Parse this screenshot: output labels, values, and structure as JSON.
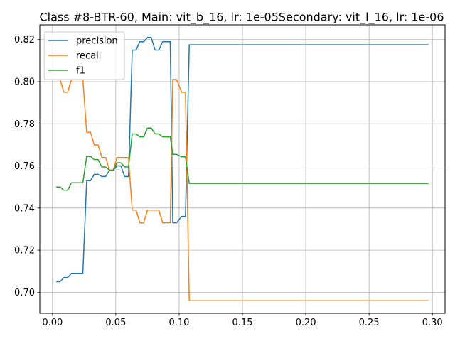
{
  "chart_data": {
    "type": "line",
    "title": "Class #8-BTR-60, Main: vit_b_16, lr: 1e-05Secondary: vit_l_16, lr: 1e-06",
    "xlabel": "",
    "ylabel": "",
    "xlim": [
      -0.01,
      0.31
    ],
    "ylim": [
      0.69,
      0.827
    ],
    "xticks": [
      0.0,
      0.05,
      0.1,
      0.15,
      0.2,
      0.25,
      0.3
    ],
    "xtick_labels": [
      "0.00",
      "0.05",
      "0.10",
      "0.15",
      "0.20",
      "0.25",
      "0.30"
    ],
    "yticks": [
      0.7,
      0.72,
      0.74,
      0.76,
      0.78,
      0.8,
      0.82
    ],
    "ytick_labels": [
      "0.70",
      "0.72",
      "0.74",
      "0.76",
      "0.78",
      "0.80",
      "0.82"
    ],
    "grid": true,
    "legend_position": "top-left",
    "series": [
      {
        "name": "precision",
        "color": "#1f77b4",
        "points": [
          [
            0.003,
            0.705
          ],
          [
            0.006,
            0.705
          ],
          [
            0.009,
            0.707
          ],
          [
            0.012,
            0.707
          ],
          [
            0.015,
            0.709
          ],
          [
            0.018,
            0.709
          ],
          [
            0.021,
            0.709
          ],
          [
            0.024,
            0.709
          ],
          [
            0.027,
            0.753
          ],
          [
            0.03,
            0.753
          ],
          [
            0.033,
            0.756
          ],
          [
            0.036,
            0.756
          ],
          [
            0.039,
            0.755
          ],
          [
            0.042,
            0.755
          ],
          [
            0.045,
            0.758
          ],
          [
            0.048,
            0.758
          ],
          [
            0.051,
            0.76
          ],
          [
            0.054,
            0.76
          ],
          [
            0.057,
            0.755
          ],
          [
            0.06,
            0.755
          ],
          [
            0.063,
            0.815
          ],
          [
            0.066,
            0.815
          ],
          [
            0.069,
            0.819
          ],
          [
            0.072,
            0.819
          ],
          [
            0.075,
            0.821
          ],
          [
            0.078,
            0.821
          ],
          [
            0.081,
            0.815
          ],
          [
            0.084,
            0.815
          ],
          [
            0.087,
            0.819
          ],
          [
            0.09,
            0.819
          ],
          [
            0.093,
            0.819
          ],
          [
            0.095,
            0.733
          ],
          [
            0.098,
            0.733
          ],
          [
            0.102,
            0.736
          ],
          [
            0.105,
            0.736
          ],
          [
            0.108,
            0.8175
          ],
          [
            0.15,
            0.8175
          ],
          [
            0.2,
            0.8175
          ],
          [
            0.25,
            0.8175
          ],
          [
            0.297,
            0.8175
          ]
        ]
      },
      {
        "name": "recall",
        "color": "#ff7f0e",
        "points": [
          [
            0.003,
            0.801
          ],
          [
            0.006,
            0.801
          ],
          [
            0.009,
            0.795
          ],
          [
            0.012,
            0.795
          ],
          [
            0.015,
            0.801
          ],
          [
            0.018,
            0.801
          ],
          [
            0.021,
            0.801
          ],
          [
            0.024,
            0.801
          ],
          [
            0.027,
            0.776
          ],
          [
            0.03,
            0.776
          ],
          [
            0.033,
            0.77
          ],
          [
            0.036,
            0.77
          ],
          [
            0.039,
            0.764
          ],
          [
            0.042,
            0.764
          ],
          [
            0.045,
            0.758
          ],
          [
            0.048,
            0.758
          ],
          [
            0.051,
            0.764
          ],
          [
            0.054,
            0.764
          ],
          [
            0.057,
            0.764
          ],
          [
            0.06,
            0.764
          ],
          [
            0.063,
            0.739
          ],
          [
            0.066,
            0.739
          ],
          [
            0.069,
            0.733
          ],
          [
            0.072,
            0.733
          ],
          [
            0.075,
            0.739
          ],
          [
            0.078,
            0.739
          ],
          [
            0.081,
            0.739
          ],
          [
            0.084,
            0.739
          ],
          [
            0.087,
            0.733
          ],
          [
            0.09,
            0.733
          ],
          [
            0.093,
            0.733
          ],
          [
            0.095,
            0.801
          ],
          [
            0.098,
            0.801
          ],
          [
            0.102,
            0.795
          ],
          [
            0.105,
            0.795
          ],
          [
            0.108,
            0.696
          ],
          [
            0.15,
            0.696
          ],
          [
            0.2,
            0.696
          ],
          [
            0.25,
            0.696
          ],
          [
            0.297,
            0.696
          ]
        ]
      },
      {
        "name": "f1",
        "color": "#2ca02c",
        "points": [
          [
            0.003,
            0.75
          ],
          [
            0.006,
            0.75
          ],
          [
            0.009,
            0.7485
          ],
          [
            0.012,
            0.7485
          ],
          [
            0.015,
            0.752
          ],
          [
            0.018,
            0.752
          ],
          [
            0.021,
            0.752
          ],
          [
            0.024,
            0.752
          ],
          [
            0.027,
            0.7645
          ],
          [
            0.03,
            0.7645
          ],
          [
            0.033,
            0.763
          ],
          [
            0.036,
            0.763
          ],
          [
            0.039,
            0.7595
          ],
          [
            0.042,
            0.7595
          ],
          [
            0.045,
            0.758
          ],
          [
            0.048,
            0.758
          ],
          [
            0.051,
            0.7615
          ],
          [
            0.054,
            0.7615
          ],
          [
            0.057,
            0.7595
          ],
          [
            0.06,
            0.7595
          ],
          [
            0.063,
            0.7752
          ],
          [
            0.066,
            0.7752
          ],
          [
            0.069,
            0.7738
          ],
          [
            0.072,
            0.7738
          ],
          [
            0.075,
            0.778
          ],
          [
            0.078,
            0.778
          ],
          [
            0.081,
            0.7752
          ],
          [
            0.084,
            0.7752
          ],
          [
            0.087,
            0.7738
          ],
          [
            0.09,
            0.7738
          ],
          [
            0.093,
            0.7738
          ],
          [
            0.095,
            0.7655
          ],
          [
            0.098,
            0.7655
          ],
          [
            0.102,
            0.7643
          ],
          [
            0.105,
            0.7643
          ],
          [
            0.108,
            0.7517
          ],
          [
            0.15,
            0.7517
          ],
          [
            0.2,
            0.7517
          ],
          [
            0.25,
            0.7517
          ],
          [
            0.297,
            0.7517
          ]
        ]
      }
    ]
  }
}
